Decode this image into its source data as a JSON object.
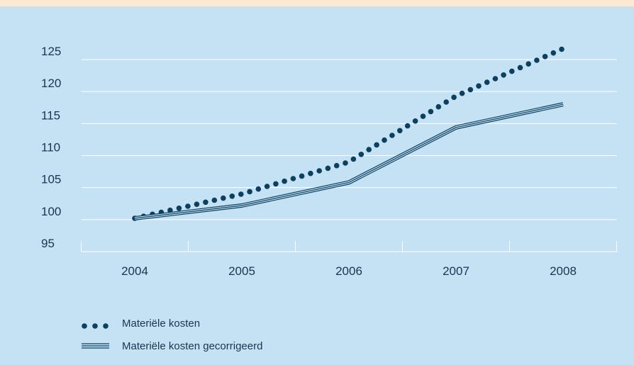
{
  "colors": {
    "background": "#c5e1f4",
    "top_band": "#fde8d2",
    "grid": "#ffffff",
    "series": "#0d3f5e"
  },
  "chart_data": {
    "type": "line",
    "x": [
      "2004",
      "2005",
      "2006",
      "2007",
      "2008"
    ],
    "series": [
      {
        "name": "Materiële kosten",
        "style": "dotted",
        "values": [
          100.2,
          104.0,
          109.0,
          119.3,
          126.7
        ]
      },
      {
        "name": "Materiële kosten gecorrigeerd",
        "style": "triple-line",
        "values": [
          100.2,
          102.2,
          105.8,
          114.4,
          118.0
        ]
      }
    ],
    "y_ticks": [
      "95",
      "100",
      "105",
      "110",
      "115",
      "120",
      "125"
    ],
    "ylim": [
      95,
      125
    ],
    "grid": true,
    "legend_position": "bottom-left",
    "title": "",
    "xlabel": "",
    "ylabel": ""
  }
}
